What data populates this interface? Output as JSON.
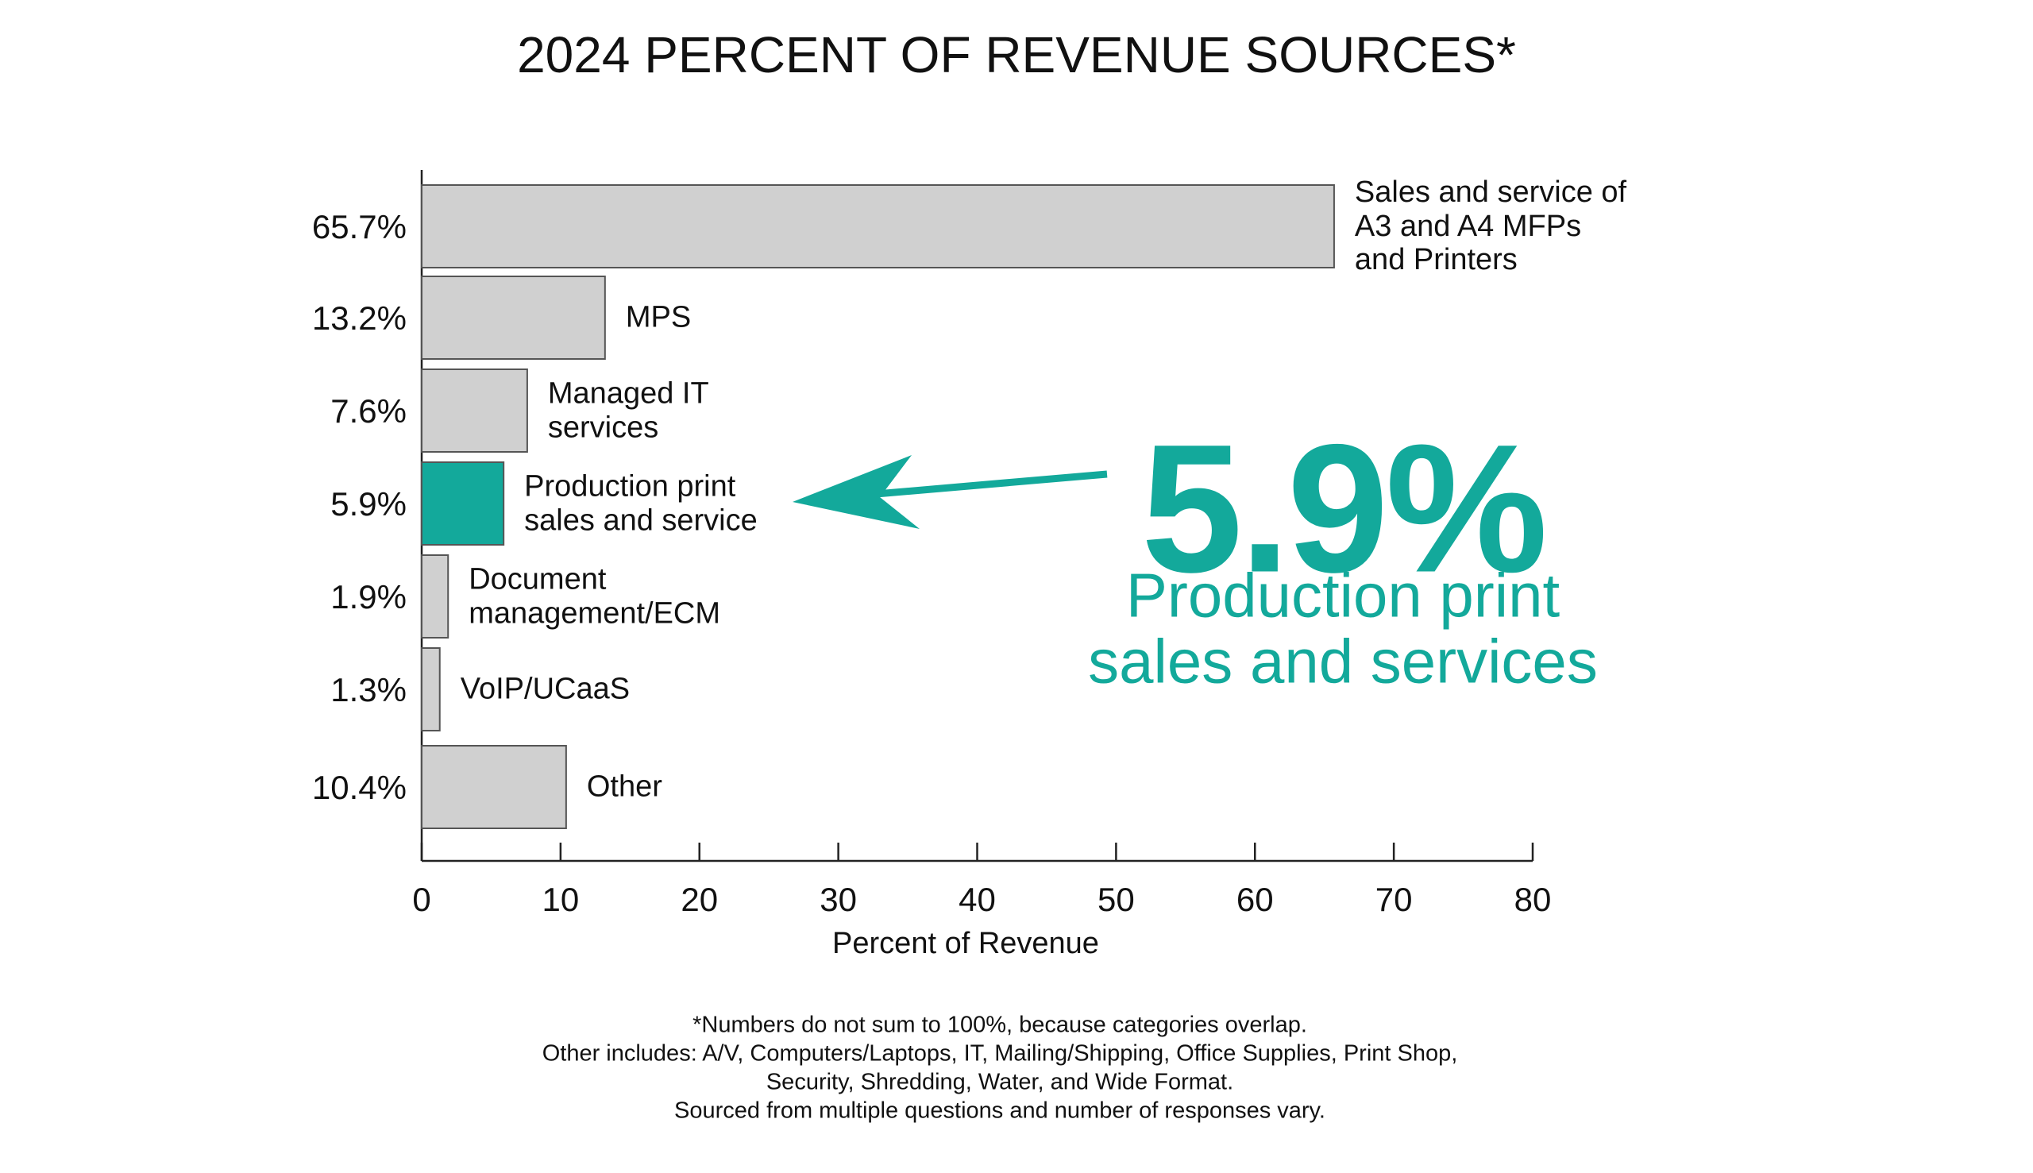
{
  "chart_data": {
    "type": "barh",
    "title": "2024 PERCENT OF REVENUE SOURCES*",
    "categories": [
      "Sales and service of\nA3 and A4 MFPs\nand Printers",
      "MPS",
      "Managed IT\nservices",
      "Production print\nsales and service",
      "Document\nmanagement/ECM",
      "VoIP/UCaaS",
      "Other"
    ],
    "values": [
      65.7,
      13.2,
      7.6,
      5.9,
      1.9,
      1.3,
      10.4
    ],
    "value_labels": [
      "65.7%",
      "13.2%",
      "7.6%",
      "5.9%",
      "1.9%",
      "1.3%",
      "10.4%"
    ],
    "colors": [
      "#d0d0d0",
      "#d0d0d0",
      "#d0d0d0",
      "#13a99b",
      "#d0d0d0",
      "#d0d0d0",
      "#d0d0d0"
    ],
    "xlim": [
      0,
      80
    ],
    "xticks": [
      0,
      10,
      20,
      30,
      40,
      50,
      60,
      70,
      80
    ],
    "xlabel": "Percent of Revenue",
    "annotation": {
      "value": "5.9%",
      "text": "Production print\nsales and services"
    },
    "footnotes": [
      "*Numbers do not sum to 100%, because categories overlap.",
      "Other includes: A/V, Computers/Laptops, IT, Mailing/Shipping, Office Supplies, Print Shop,",
      "Security, Shredding, Water, and Wide Format.",
      "Sourced from multiple questions and number of responses vary."
    ]
  }
}
